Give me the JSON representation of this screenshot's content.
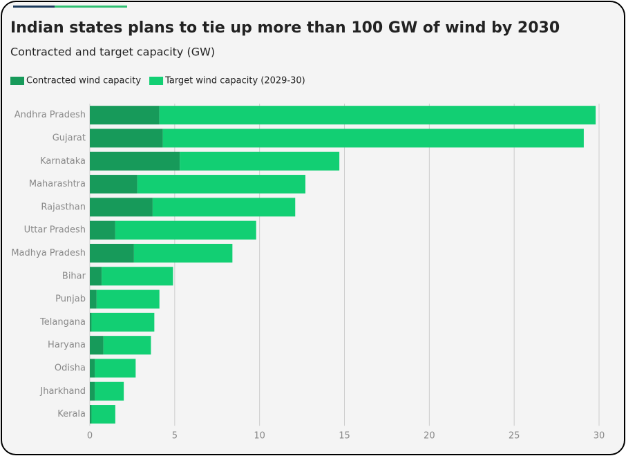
{
  "chart_data": {
    "type": "stacked-bar-horizontal",
    "title": "Indian states plans to tie up more than 100 GW of wind by 2030",
    "subtitle": "Contracted and target capacity (GW)",
    "categories": [
      "Andhra Pradesh",
      "Gujarat",
      "Karnataka",
      "Maharashtra",
      "Rajasthan",
      "Uttar Pradesh",
      "Madhya Pradesh",
      "Bihar",
      "Punjab",
      "Telangana",
      "Haryana",
      "Odisha",
      "Jharkhand",
      "Kerala"
    ],
    "series": [
      {
        "name": "Contracted wind capacity",
        "color": "#179a5a",
        "values": [
          4.1,
          4.3,
          5.3,
          2.8,
          3.7,
          1.5,
          2.6,
          0.7,
          0.4,
          0.1,
          0.8,
          0.3,
          0.3,
          0.1
        ]
      },
      {
        "name": "Target wind capacity (2029-30)",
        "color": "#12cf73",
        "values": [
          25.7,
          24.8,
          9.4,
          9.9,
          8.4,
          8.3,
          5.8,
          4.2,
          3.7,
          3.7,
          2.8,
          2.4,
          1.7,
          1.4
        ]
      }
    ],
    "xlim": [
      0,
      30
    ],
    "xticks": [
      0,
      5,
      10,
      15,
      20,
      25,
      30
    ],
    "grid": true
  }
}
